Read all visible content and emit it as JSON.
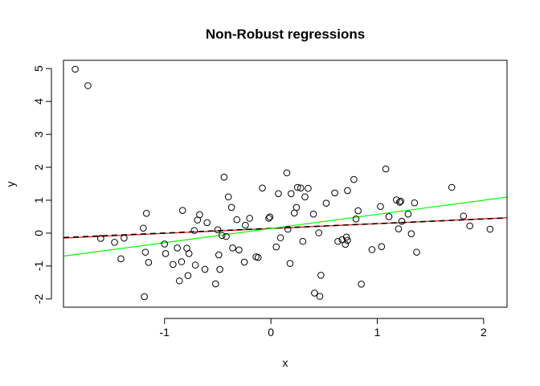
{
  "chart_data": {
    "type": "scatter",
    "title": "Non-Robust regressions",
    "xlabel": "x",
    "ylabel": "y",
    "xlim": [
      -1.95,
      2.22
    ],
    "ylim": [
      -2.25,
      5.25
    ],
    "x_ticks": [
      -1,
      0,
      1,
      2
    ],
    "y_ticks": [
      -2,
      -1,
      0,
      1,
      2,
      3,
      4,
      5
    ],
    "x_tick_labels": [
      "-1",
      "0",
      "1",
      "2"
    ],
    "y_tick_labels": [
      "-2",
      "-1",
      "0",
      "1",
      "2",
      "3",
      "4",
      "5"
    ],
    "grid": false,
    "legend": "none",
    "points": {
      "x": [
        -1.84,
        -1.72,
        -1.6,
        -1.47,
        -1.41,
        -1.38,
        -1.2,
        -1.19,
        -1.18,
        -1.17,
        -1.15,
        -1.0,
        -0.99,
        -0.92,
        -0.88,
        -0.86,
        -0.84,
        -0.83,
        -0.79,
        -0.78,
        -0.77,
        -0.72,
        -0.71,
        -0.69,
        -0.67,
        -0.62,
        -0.6,
        -0.52,
        -0.5,
        -0.49,
        -0.48,
        -0.46,
        -0.44,
        -0.42,
        -0.4,
        -0.37,
        -0.36,
        -0.32,
        -0.3,
        -0.25,
        -0.24,
        -0.2,
        -0.14,
        -0.12,
        -0.08,
        -0.02,
        -0.01,
        0.05,
        0.07,
        0.09,
        0.15,
        0.16,
        0.18,
        0.19,
        0.22,
        0.24,
        0.25,
        0.28,
        0.3,
        0.32,
        0.35,
        0.4,
        0.41,
        0.45,
        0.46,
        0.47,
        0.52,
        0.6,
        0.63,
        0.67,
        0.7,
        0.71,
        0.72,
        0.72,
        0.78,
        0.8,
        0.82,
        0.85,
        0.95,
        1.03,
        1.04,
        1.08,
        1.11,
        1.18,
        1.2,
        1.21,
        1.22,
        1.23,
        1.29,
        1.32,
        1.35,
        1.37,
        1.7,
        1.81,
        1.87,
        2.06
      ],
      "y": [
        4.98,
        4.48,
        -0.16,
        -0.28,
        -0.78,
        -0.15,
        0.15,
        -1.93,
        -0.58,
        0.6,
        -0.89,
        -0.33,
        -0.62,
        -0.95,
        -0.45,
        -1.45,
        -0.87,
        0.69,
        -0.46,
        -1.29,
        -0.62,
        0.08,
        -0.97,
        0.4,
        0.56,
        -1.1,
        0.32,
        -1.54,
        0.1,
        -0.66,
        -1.1,
        -0.07,
        1.7,
        -0.1,
        1.1,
        0.78,
        -0.45,
        0.41,
        -0.51,
        -0.88,
        0.24,
        0.45,
        -0.72,
        -0.74,
        1.37,
        0.45,
        0.49,
        -0.42,
        1.2,
        -0.14,
        1.83,
        0.12,
        -0.92,
        1.2,
        0.61,
        0.78,
        1.39,
        1.37,
        -0.25,
        1.1,
        1.36,
        0.58,
        -1.82,
        0.01,
        -1.92,
        -1.28,
        0.91,
        1.22,
        -0.25,
        -0.2,
        -0.34,
        -0.12,
        -0.22,
        1.29,
        1.63,
        0.43,
        0.68,
        -1.55,
        -0.5,
        0.81,
        -0.41,
        1.95,
        0.5,
        1.01,
        0.13,
        0.94,
        0.97,
        0.36,
        0.58,
        -0.02,
        0.92,
        -0.58,
        1.39,
        0.52,
        0.22,
        0.12
      ]
    },
    "fit_lines": [
      {
        "color": "#ff0000",
        "style": "solid",
        "intercept": 0.14,
        "slope": 0.148
      },
      {
        "color": "#000000",
        "style": "dashed",
        "intercept": 0.145,
        "slope": 0.143
      },
      {
        "color": "#00ff00",
        "style": "solid",
        "intercept": 0.14,
        "slope": 0.43
      }
    ]
  }
}
